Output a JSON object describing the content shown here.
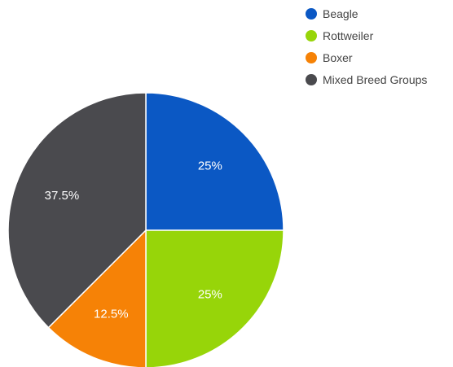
{
  "chart_data": {
    "type": "pie",
    "title": "",
    "legend_position": "top-right",
    "start_angle": "12 o'clock",
    "direction": "clockwise",
    "slices": [
      {
        "name": "Beagle",
        "value": 25,
        "label": "25%",
        "color": "#0b58c4"
      },
      {
        "name": "Rottweiler",
        "value": 25,
        "label": "25%",
        "color": "#97d509"
      },
      {
        "name": "Boxer",
        "value": 12.5,
        "label": "12.5%",
        "color": "#f68206"
      },
      {
        "name": "Mixed Breed Groups",
        "value": 37.5,
        "label": "37.5%",
        "color": "#4a4a4e"
      }
    ]
  }
}
